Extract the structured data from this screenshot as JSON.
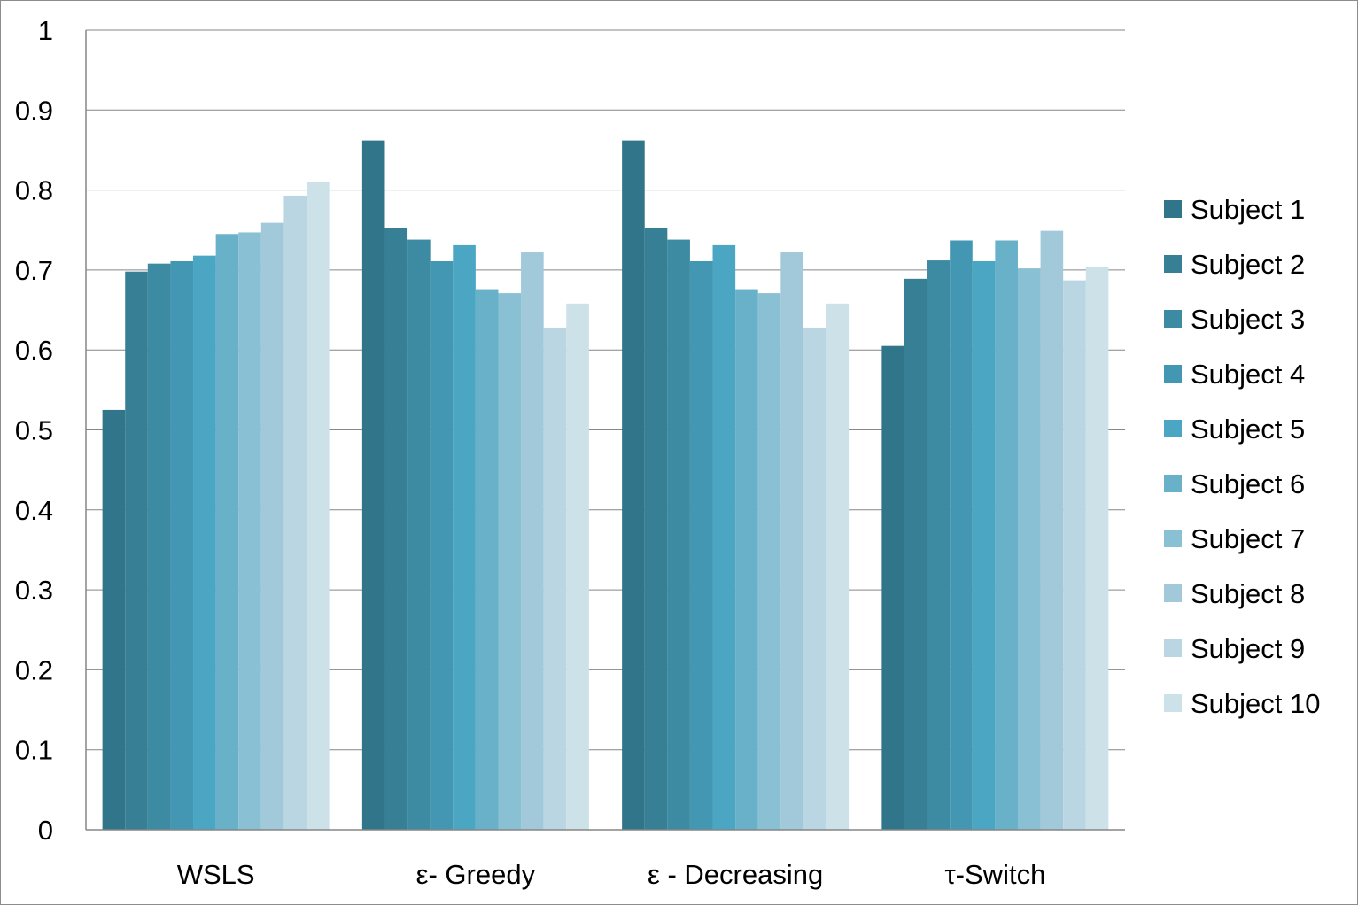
{
  "chart_data": {
    "type": "bar",
    "categories": [
      "WSLS",
      "ε- Greedy",
      "ε - Decreasing",
      "τ-Switch"
    ],
    "ylim": [
      0,
      1
    ],
    "yticks": [
      "0",
      "0.1",
      "0.2",
      "0.3",
      "0.4",
      "0.5",
      "0.6",
      "0.7",
      "0.8",
      "0.9",
      "1"
    ],
    "grid": true,
    "legend_position": "right",
    "series": [
      {
        "name": "Subject 1",
        "color": "#31758a",
        "values": [
          0.525,
          0.862,
          0.862,
          0.605
        ]
      },
      {
        "name": "Subject 2",
        "color": "#367f94",
        "values": [
          0.698,
          0.752,
          0.752,
          0.689
        ]
      },
      {
        "name": "Subject 3",
        "color": "#3d8ba2",
        "values": [
          0.708,
          0.738,
          0.738,
          0.712
        ]
      },
      {
        "name": "Subject 4",
        "color": "#4397b2",
        "values": [
          0.711,
          0.711,
          0.711,
          0.737
        ]
      },
      {
        "name": "Subject 5",
        "color": "#4aa6c2",
        "values": [
          0.718,
          0.731,
          0.731,
          0.711
        ]
      },
      {
        "name": "Subject 6",
        "color": "#68b1c8",
        "values": [
          0.745,
          0.676,
          0.676,
          0.737
        ]
      },
      {
        "name": "Subject 7",
        "color": "#89c0d3",
        "values": [
          0.747,
          0.671,
          0.671,
          0.702
        ]
      },
      {
        "name": "Subject 8",
        "color": "#a1c9da",
        "values": [
          0.759,
          0.722,
          0.722,
          0.749
        ]
      },
      {
        "name": "Subject 9",
        "color": "#b9d6e2",
        "values": [
          0.793,
          0.628,
          0.628,
          0.687
        ]
      },
      {
        "name": "Subject 10",
        "color": "#cde1e9",
        "values": [
          0.81,
          0.658,
          0.658,
          0.704
        ]
      }
    ]
  }
}
